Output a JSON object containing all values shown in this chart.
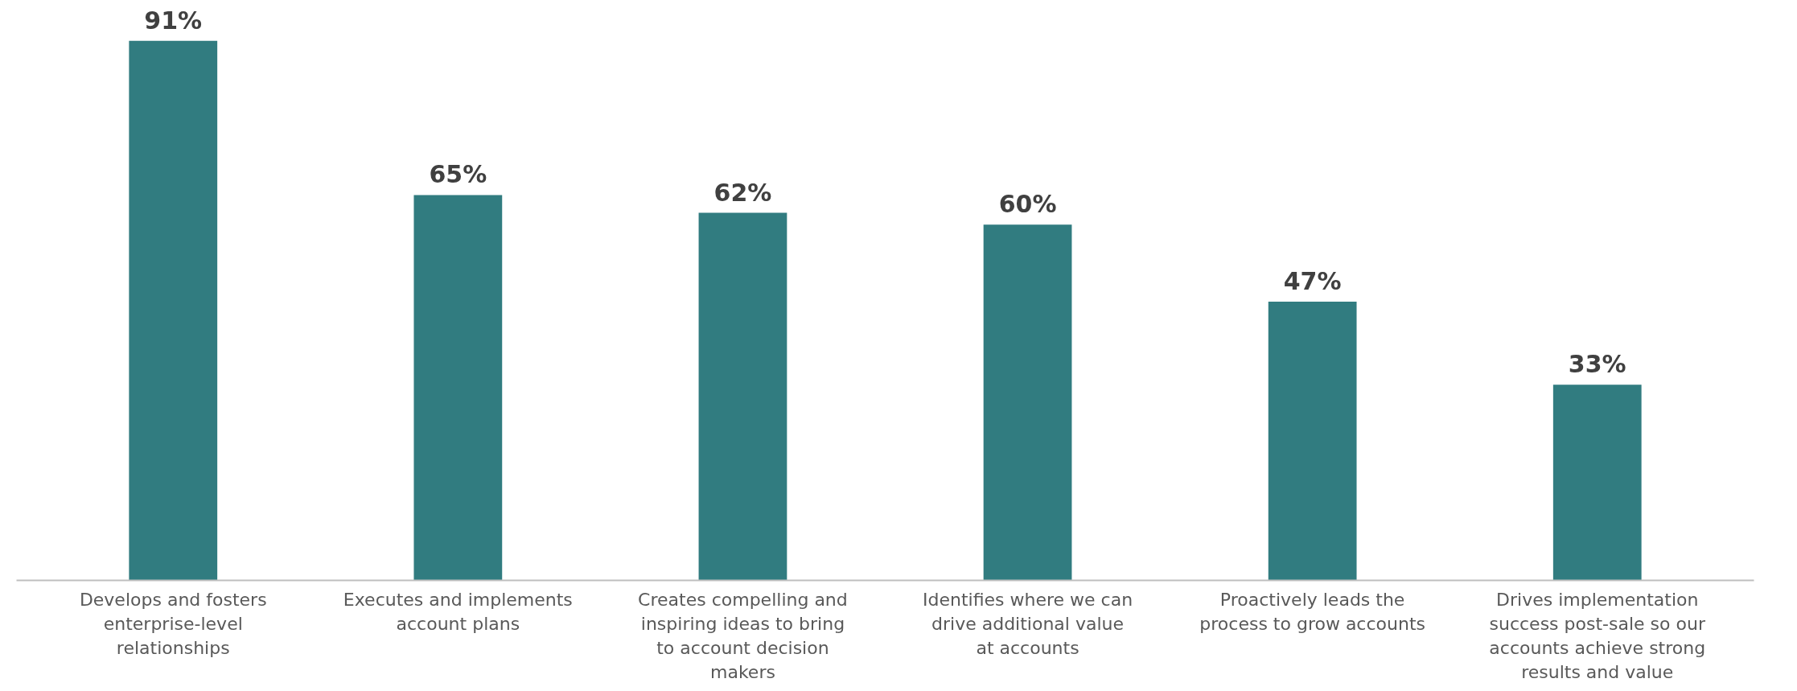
{
  "chart_data": {
    "type": "bar",
    "categories": [
      "Develops and fosters enterprise-level relationships",
      "Executes and implements account plans",
      "Creates compelling and inspiring ideas to bring to account decision makers",
      "Identifies where we can drive additional value at accounts",
      "Proactively leads the process to grow accounts",
      "Drives implementation success post-sale so our accounts achieve strong results and value"
    ],
    "values": [
      91,
      65,
      62,
      60,
      47,
      33
    ],
    "color": "#317c80",
    "value_labels": [
      "91%",
      "65%",
      "62%",
      "60%",
      "47%",
      "33%"
    ]
  }
}
